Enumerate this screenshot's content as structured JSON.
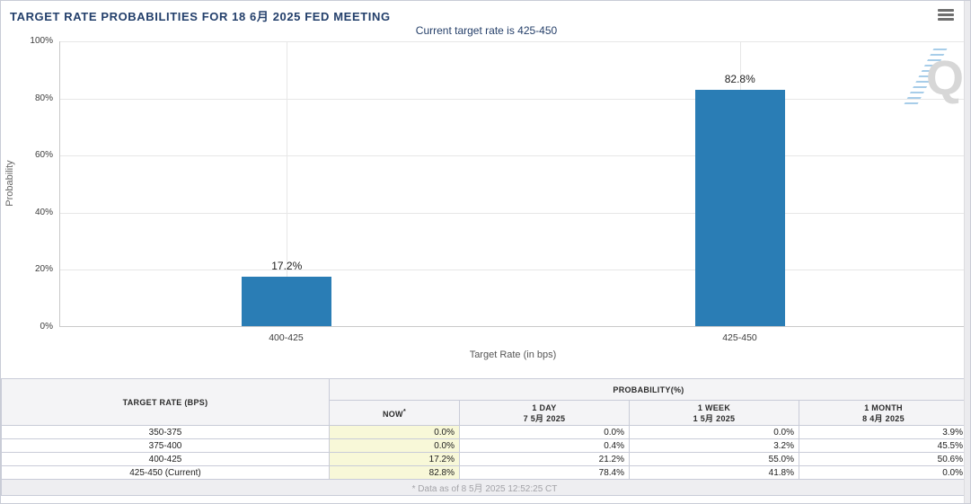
{
  "header": {
    "title": "TARGET RATE PROBABILITIES FOR 18 6月 2025 FED MEETING"
  },
  "chart": {
    "subtitle": "Current target rate is 425-450",
    "y_axis_label": "Probability",
    "x_axis_label": "Target Rate (in bps)",
    "watermark_letter": "Q"
  },
  "chart_data": {
    "type": "bar",
    "title": "Current target rate is 425-450",
    "categories": [
      "400-425",
      "425-450"
    ],
    "values": [
      17.2,
      82.8
    ],
    "value_labels": [
      "17.2%",
      "82.8%"
    ],
    "xlabel": "Target Rate (in bps)",
    "ylabel": "Probability",
    "ylim": [
      0,
      100
    ],
    "yticks": [
      "0%",
      "20%",
      "40%",
      "60%",
      "80%",
      "100%"
    ],
    "grid": true,
    "legend": false,
    "bar_color": "#2a7db5"
  },
  "table": {
    "col_header_rate": "TARGET RATE (BPS)",
    "col_header_probability": "PROBABILITY(%)",
    "sub_headers": [
      {
        "line1": "NOW",
        "sup": "*",
        "line2": ""
      },
      {
        "line1": "1 DAY",
        "line2": "7 5月 2025"
      },
      {
        "line1": "1 WEEK",
        "line2": "1 5月 2025"
      },
      {
        "line1": "1 MONTH",
        "line2": "8 4月 2025"
      }
    ],
    "rows": [
      {
        "rate": "350-375",
        "now": "0.0%",
        "day": "0.0%",
        "week": "0.0%",
        "month": "3.9%"
      },
      {
        "rate": "375-400",
        "now": "0.0%",
        "day": "0.4%",
        "week": "3.2%",
        "month": "45.5%"
      },
      {
        "rate": "400-425",
        "now": "17.2%",
        "day": "21.2%",
        "week": "55.0%",
        "month": "50.6%"
      },
      {
        "rate": "425-450 (Current)",
        "now": "82.8%",
        "day": "78.4%",
        "week": "41.8%",
        "month": "0.0%"
      }
    ],
    "footnote": "* Data as of 8 5月 2025 12:52:25 CT"
  },
  "colors": {
    "bar": "#2a7db5",
    "title_text": "#233f6b",
    "now_column_bg": "#f8f8d8",
    "header_bg": "#f4f4f6"
  }
}
